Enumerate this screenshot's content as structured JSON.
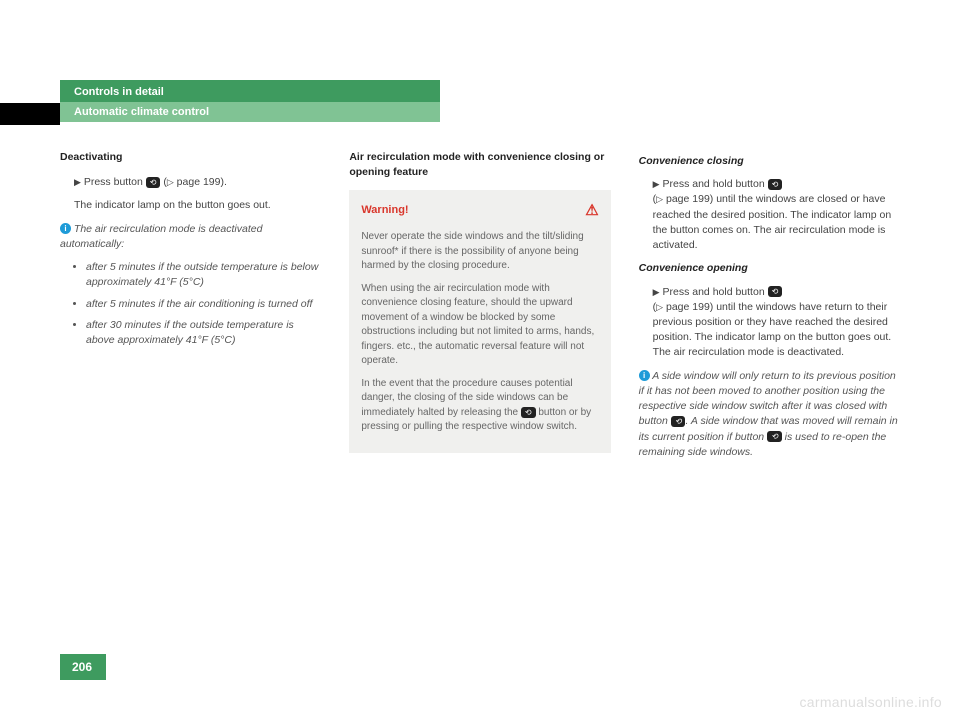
{
  "header": {
    "title": "Controls in detail",
    "subtitle": "Automatic climate control"
  },
  "col1": {
    "h": "Deactivating",
    "p1a": "Press button ",
    "p1b": " (",
    "p1c": " page 199).",
    "p2": "The indicator lamp on the button goes out.",
    "info": "The air recirculation mode is deactivated automatically:",
    "b1": "after 5 minutes if the outside temperature is below approximately 41°F (5°C)",
    "b2": "after 5 minutes if the air conditioning is turned off",
    "b3": "after 30 minutes if the outside temperature is above approximately 41°F (5°C)"
  },
  "col2": {
    "h": "Air recirculation mode with convenience closing or opening feature",
    "warn_label": "Warning!",
    "w1": "Never operate the side windows and the tilt/sliding sunroof* if there is the possibility of anyone being harmed by the closing procedure.",
    "w2": "When using the air recirculation mode with convenience closing feature, should the upward movement of a window be blocked by some obstructions including but not limited to arms, hands, fingers. etc., the automatic reversal feature will not operate.",
    "w3a": "In the event that the procedure causes potential danger, the closing of the side windows can be immediately halted by releasing the ",
    "w3b": " button or by pressing or pulling the respective window switch."
  },
  "col3": {
    "h1": "Convenience closing",
    "p1a": "Press and hold button ",
    "p1b": " (",
    "p1c": " page 199) until the windows are closed or have reached the desired position. The indicator lamp on the button comes on. The air recirculation mode is activated.",
    "h2": "Convenience opening",
    "p2a": "Press and hold button ",
    "p2b": " (",
    "p2c": " page 199) until the windows have return to their previous position or they have reached the desired position. The indicator lamp on the button goes out. The air recirculation mode is deactivated.",
    "info_a": "A side window will only return to its previous position if it has not been moved to another position using the respective side window switch after it was closed with button ",
    "info_b": ". A side window that was moved will remain in its current position if button ",
    "info_c": " is used to re-open the remaining side windows."
  },
  "page_number": "206",
  "watermark": "carmanualsonline.info",
  "icons": {
    "recirculate": "⟲",
    "triangle": "▶",
    "ref": "▷",
    "info": "i",
    "warn": "⚠"
  },
  "colors": {
    "green": "#3e9b5f",
    "lightgreen": "#80c394",
    "red": "#d9372c",
    "infoblue": "#1e9bd8",
    "boxbg": "#f0f0ee"
  }
}
